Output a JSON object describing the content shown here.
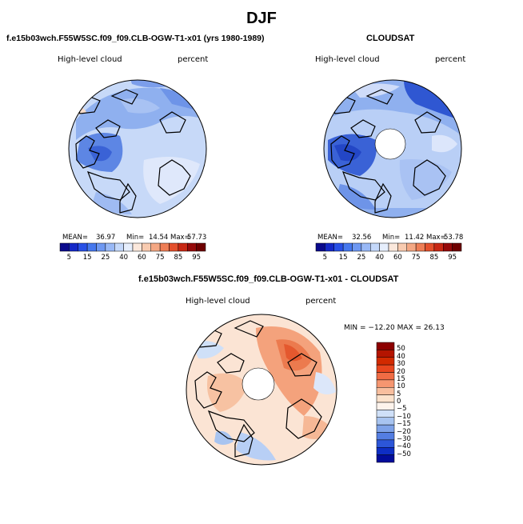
{
  "page": {
    "title": "DJF"
  },
  "panels": [
    {
      "id": "model",
      "case_label": "f.e15b03wch.F55W5SC.f09_f09.CLB-OGW-T1-x01 (yrs 1980-1989)",
      "variable": "High-level cloud",
      "units": "percent",
      "stats": {
        "mean_label": "MEAN=",
        "mean": "36.97",
        "min_label": "Min=",
        "min": "14.54",
        "max_label": "Max=",
        "max": "57.73"
      }
    },
    {
      "id": "obs",
      "case_label": "CLOUDSAT",
      "variable": "High-level cloud",
      "units": "percent",
      "stats": {
        "mean_label": "MEAN=",
        "mean": "32.56",
        "min_label": "Min=",
        "min": "11.42",
        "max_label": "Max=",
        "max": "53.78"
      }
    },
    {
      "id": "diff",
      "case_label": "f.e15b03wch.F55W5SC.f09_f09.CLB-OGW-T1-x01 - CLOUDSAT",
      "variable": "High-level cloud",
      "units": "percent",
      "minmax_text": "MIN = −12.20  MAX =  26.13"
    }
  ],
  "chart_data": [
    {
      "type": "heatmap",
      "title": "High-level cloud",
      "projection": "north-polar-stereographic",
      "units": "percent",
      "mean": 36.97,
      "min": 14.54,
      "max": 57.73,
      "colorbar_levels": [
        5,
        10,
        15,
        20,
        25,
        30,
        40,
        50,
        60,
        70,
        75,
        80,
        85,
        90,
        95
      ],
      "colorbar_tick_labels": [
        "5",
        "15",
        "25",
        "40",
        "60",
        "75",
        "85",
        "95"
      ],
      "colorbar_colors": [
        "#0a0a8c",
        "#1428c8",
        "#2850e6",
        "#4678ee",
        "#6e98f2",
        "#98b8f6",
        "#c4d8fa",
        "#e6eefc",
        "#fbe8dc",
        "#f8cbb0",
        "#f4a884",
        "#ee7e56",
        "#e4502c",
        "#c82814",
        "#960a0a",
        "#6e0000"
      ]
    },
    {
      "type": "heatmap",
      "title": "CLOUDSAT",
      "projection": "north-polar-stereographic",
      "units": "percent",
      "mean": 32.56,
      "min": 11.42,
      "max": 53.78,
      "colorbar_levels": [
        5,
        10,
        15,
        20,
        25,
        30,
        40,
        50,
        60,
        70,
        75,
        80,
        85,
        90,
        95
      ],
      "colorbar_tick_labels": [
        "5",
        "15",
        "25",
        "40",
        "60",
        "75",
        "85",
        "95"
      ],
      "colorbar_colors": [
        "#0a0a8c",
        "#1428c8",
        "#2850e6",
        "#4678ee",
        "#6e98f2",
        "#98b8f6",
        "#c4d8fa",
        "#e6eefc",
        "#fbe8dc",
        "#f8cbb0",
        "#f4a884",
        "#ee7e56",
        "#e4502c",
        "#c82814",
        "#960a0a",
        "#6e0000"
      ]
    },
    {
      "type": "heatmap",
      "title": "f.e15b03wch.F55W5SC.f09_f09.CLB-OGW-T1-x01 - CLOUDSAT",
      "projection": "north-polar-stereographic",
      "units": "percent",
      "min": -12.2,
      "max": 26.13,
      "colorbar_levels": [
        50,
        40,
        30,
        20,
        15,
        10,
        5,
        0,
        -5,
        -10,
        -15,
        -20,
        -30,
        -40,
        -50
      ],
      "colorbar_tick_labels": [
        "50",
        "40",
        "30",
        "20",
        "15",
        "10",
        "5",
        "0",
        "−5",
        "−10",
        "−15",
        "−20",
        "−30",
        "−40",
        "−50"
      ],
      "colorbar_colors": [
        "#8c0000",
        "#b41400",
        "#d22a00",
        "#e8461e",
        "#f06c44",
        "#f59670",
        "#f8be9e",
        "#fbe2cc",
        "#fdf3ec",
        "#cfe0f8",
        "#a8c4f0",
        "#7ea2e8",
        "#547ee2",
        "#2c56d8",
        "#0e2ec4",
        "#020c9a"
      ]
    }
  ]
}
